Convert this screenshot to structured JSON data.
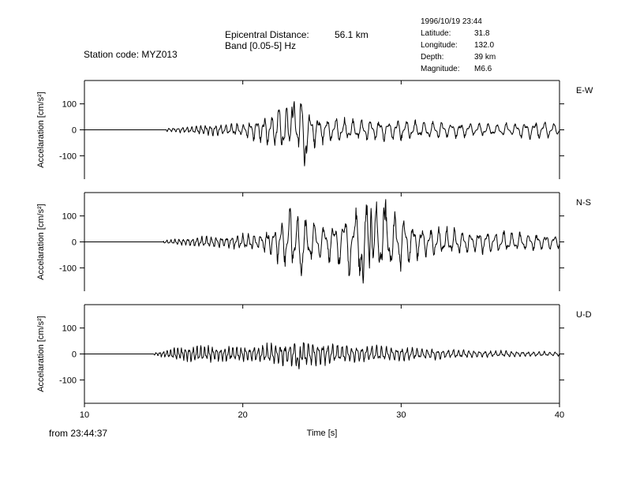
{
  "header": {
    "station": "Station code: MYZ013",
    "distance_label": "Epicentral Distance:",
    "distance_value": "56.1 km",
    "band": "Band [0.05-5] Hz"
  },
  "event": {
    "datetime": "1996/10/19 23:44",
    "rows": [
      {
        "key": "Latitude:",
        "value": "31.8"
      },
      {
        "key": "Longitude:",
        "value": "132.0"
      },
      {
        "key": "Depth:",
        "value": "39 km"
      },
      {
        "key": "Magnitude:",
        "value": "M6.6"
      }
    ]
  },
  "footer": {
    "start_time": "from 23:44:37"
  },
  "chart_data": {
    "type": "line",
    "xlabel": "Time [s]",
    "xlim": [
      10,
      40
    ],
    "xticks": [
      10,
      20,
      30,
      40
    ],
    "ylabel": "Accelaration [cm/s²]",
    "ylim": [
      -190,
      190
    ],
    "yticks": [
      100,
      0,
      -100
    ],
    "ytick_labels": [
      "100",
      "0",
      "-100"
    ],
    "grid": false,
    "line_color": "#000000",
    "panels": [
      {
        "component": "E-W",
        "onset": 15.2,
        "envelope": [
          [
            15.2,
            6
          ],
          [
            16,
            10
          ],
          [
            17,
            16
          ],
          [
            18,
            20
          ],
          [
            19,
            22
          ],
          [
            20,
            24
          ],
          [
            21,
            45
          ],
          [
            22,
            70
          ],
          [
            23,
            95
          ],
          [
            24,
            85
          ],
          [
            25,
            50
          ],
          [
            26,
            45
          ],
          [
            27,
            40
          ],
          [
            28,
            40
          ],
          [
            30,
            38
          ],
          [
            32,
            32
          ],
          [
            34,
            28
          ],
          [
            36,
            24
          ],
          [
            38,
            30
          ],
          [
            39,
            35
          ],
          [
            40,
            20
          ]
        ],
        "period": [
          [
            15,
            0.28
          ],
          [
            18,
            0.3
          ],
          [
            21,
            0.45
          ],
          [
            26,
            0.55
          ],
          [
            40,
            0.6
          ]
        ],
        "spikes": [
          {
            "t": 23.9,
            "a": -155
          },
          {
            "t": 23.65,
            "a": 110
          },
          {
            "t": 23.1,
            "a": 105
          },
          {
            "t": 22.25,
            "a": 80
          }
        ]
      },
      {
        "component": "N-S",
        "onset": 15.0,
        "envelope": [
          [
            15,
            6
          ],
          [
            16,
            12
          ],
          [
            17,
            18
          ],
          [
            18,
            22
          ],
          [
            19,
            24
          ],
          [
            20,
            28
          ],
          [
            21,
            35
          ],
          [
            22,
            60
          ],
          [
            23,
            110
          ],
          [
            24,
            95
          ],
          [
            25,
            60
          ],
          [
            26,
            90
          ],
          [
            27,
            130
          ],
          [
            28,
            150
          ],
          [
            29,
            140
          ],
          [
            30,
            110
          ],
          [
            31,
            65
          ],
          [
            32,
            55
          ],
          [
            34,
            45
          ],
          [
            36,
            40
          ],
          [
            38,
            35
          ],
          [
            40,
            25
          ]
        ],
        "period": [
          [
            15,
            0.25
          ],
          [
            20,
            0.35
          ],
          [
            23,
            0.5
          ],
          [
            27,
            0.7
          ],
          [
            29,
            0.6
          ],
          [
            33,
            0.5
          ],
          [
            40,
            0.55
          ]
        ],
        "spikes": [
          {
            "t": 27.6,
            "a": -175
          },
          {
            "t": 28.1,
            "a": 150
          },
          {
            "t": 28.9,
            "a": 148
          },
          {
            "t": 23.0,
            "a": 135
          },
          {
            "t": 23.7,
            "a": -140
          }
        ]
      },
      {
        "component": "U-D",
        "onset": 14.4,
        "envelope": [
          [
            14.4,
            5
          ],
          [
            15,
            14
          ],
          [
            16,
            26
          ],
          [
            17,
            32
          ],
          [
            18,
            30
          ],
          [
            20,
            28
          ],
          [
            22,
            38
          ],
          [
            23,
            45
          ],
          [
            24,
            50
          ],
          [
            25,
            40
          ],
          [
            26,
            35
          ],
          [
            28,
            30
          ],
          [
            30,
            26
          ],
          [
            32,
            20
          ],
          [
            34,
            15
          ],
          [
            36,
            12
          ],
          [
            38,
            10
          ],
          [
            40,
            8
          ]
        ],
        "period": [
          [
            14,
            0.22
          ],
          [
            18,
            0.25
          ],
          [
            24,
            0.3
          ],
          [
            30,
            0.32
          ],
          [
            40,
            0.35
          ]
        ],
        "spikes": [
          {
            "t": 23.6,
            "a": 72
          },
          {
            "t": 23.55,
            "a": -70
          }
        ]
      }
    ]
  }
}
